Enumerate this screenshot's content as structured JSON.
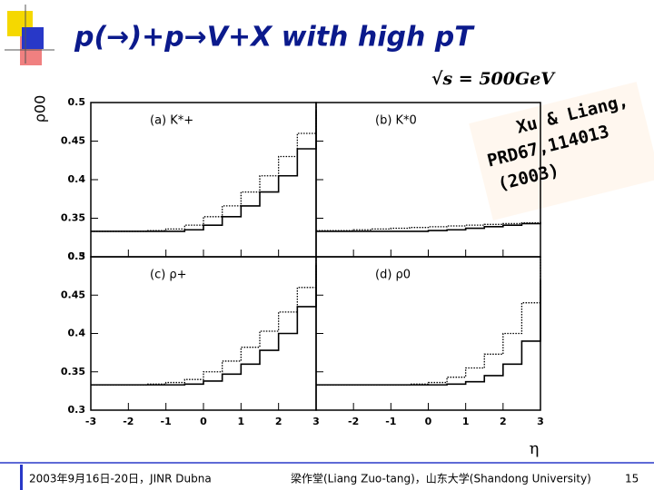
{
  "slide": {
    "title": "p(→)+p→V+X with high pT",
    "energy": "√s = 500GeV",
    "y_label": "ρ00",
    "x_label": "η",
    "stamp": [
      "Xu & Liang,",
      "PRD67,114013",
      "(2003)"
    ],
    "footer_left": "2003年9月16日-20日，JINR Dubna",
    "footer_right": "梁作堂(Liang Zuo-tang)，山东大学(Shandong University)",
    "page": "15"
  },
  "chart_data": [
    {
      "type": "line",
      "label": "(a) K*+",
      "x": [
        -3,
        -2.5,
        -2,
        -1.5,
        -1,
        -0.5,
        0,
        0.5,
        1,
        1.5,
        2,
        2.5,
        3
      ],
      "xlim": [
        -3,
        3
      ],
      "ylim": [
        0.3,
        0.5
      ],
      "xticks": [
        -3,
        -2,
        -1,
        0,
        1,
        2,
        3
      ],
      "yticks": [
        0.3,
        0.35,
        0.4,
        0.45,
        0.5
      ],
      "series": [
        {
          "color": "#000000",
          "dash": "solid",
          "values": [
            0.333,
            0.333,
            0.333,
            0.333,
            0.333,
            0.335,
            0.341,
            0.352,
            0.366,
            0.384,
            0.405,
            0.44,
            0.49
          ]
        },
        {
          "color": "#000000",
          "dash": "dotted",
          "values": [
            0.333,
            0.333,
            0.333,
            0.334,
            0.336,
            0.341,
            0.352,
            0.366,
            0.384,
            0.405,
            0.43,
            0.46,
            0.497
          ]
        }
      ]
    },
    {
      "type": "line",
      "label": "(b) K*0",
      "x": [
        -3,
        -2.5,
        -2,
        -1.5,
        -1,
        -0.5,
        0,
        0.5,
        1,
        1.5,
        2,
        2.5,
        3
      ],
      "xlim": [
        -3,
        3
      ],
      "ylim": [
        0.3,
        0.5
      ],
      "xticks": [
        -3,
        -2,
        -1,
        0,
        1,
        2,
        3
      ],
      "yticks": [
        0.3,
        0.35,
        0.4,
        0.45,
        0.5
      ],
      "series": [
        {
          "color": "#000000",
          "dash": "solid",
          "values": [
            0.333,
            0.333,
            0.333,
            0.333,
            0.333,
            0.333,
            0.334,
            0.335,
            0.337,
            0.339,
            0.341,
            0.343,
            0.345
          ]
        },
        {
          "color": "#000000",
          "dash": "dotted",
          "values": [
            0.334,
            0.334,
            0.335,
            0.336,
            0.337,
            0.338,
            0.339,
            0.34,
            0.341,
            0.342,
            0.343,
            0.344,
            0.344
          ]
        }
      ]
    },
    {
      "type": "line",
      "label": "(c) ρ+",
      "x": [
        -3,
        -2.5,
        -2,
        -1.5,
        -1,
        -0.5,
        0,
        0.5,
        1,
        1.5,
        2,
        2.5,
        3
      ],
      "xlim": [
        -3,
        3
      ],
      "ylim": [
        0.3,
        0.5
      ],
      "xticks": [
        -3,
        -2,
        -1,
        0,
        1,
        2,
        3
      ],
      "yticks": [
        0.3,
        0.35,
        0.4,
        0.45,
        0.5
      ],
      "series": [
        {
          "color": "#000000",
          "dash": "solid",
          "values": [
            0.333,
            0.333,
            0.333,
            0.333,
            0.333,
            0.334,
            0.338,
            0.347,
            0.36,
            0.378,
            0.4,
            0.435,
            0.49
          ]
        },
        {
          "color": "#000000",
          "dash": "dotted",
          "values": [
            0.333,
            0.333,
            0.333,
            0.334,
            0.336,
            0.34,
            0.35,
            0.364,
            0.382,
            0.403,
            0.428,
            0.46,
            0.498
          ]
        }
      ]
    },
    {
      "type": "line",
      "label": "(d) ρ0",
      "x": [
        -3,
        -2.5,
        -2,
        -1.5,
        -1,
        -0.5,
        0,
        0.5,
        1,
        1.5,
        2,
        2.5,
        3
      ],
      "xlim": [
        -3,
        3
      ],
      "ylim": [
        0.3,
        0.5
      ],
      "xticks": [
        -3,
        -2,
        -1,
        0,
        1,
        2,
        3
      ],
      "yticks": [
        0.3,
        0.35,
        0.4,
        0.45,
        0.5
      ],
      "series": [
        {
          "color": "#000000",
          "dash": "solid",
          "values": [
            0.333,
            0.333,
            0.333,
            0.333,
            0.333,
            0.333,
            0.333,
            0.334,
            0.337,
            0.345,
            0.36,
            0.39,
            0.47
          ]
        },
        {
          "color": "#000000",
          "dash": "dotted",
          "values": [
            0.333,
            0.333,
            0.333,
            0.333,
            0.333,
            0.334,
            0.336,
            0.343,
            0.355,
            0.373,
            0.4,
            0.44,
            0.5
          ]
        }
      ]
    }
  ]
}
